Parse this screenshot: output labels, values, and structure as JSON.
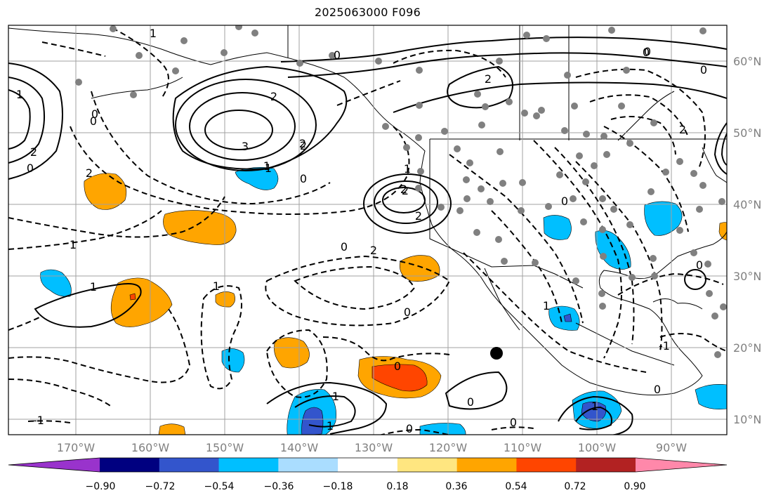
{
  "title": "2025063000 F096",
  "lon_labels": [
    "170°W",
    "160°W",
    "150°W",
    "140°W",
    "130°W",
    "120°W",
    "110°W",
    "100°W",
    "90°W"
  ],
  "lat_labels": [
    "60°N",
    "50°N",
    "40°N",
    "30°N",
    "20°N",
    "10°N"
  ],
  "colorbar": {
    "colors": [
      "#9933cc",
      "#000080",
      "#3355cc",
      "#00bfff",
      "#aaddff",
      "#ffffff",
      "#ffe680",
      "#ffa500",
      "#ff4500",
      "#b22222",
      "#ff88aa"
    ],
    "ticks": [
      "−0.90",
      "−0.72",
      "−0.54",
      "−0.36",
      "−0.18",
      "0.18",
      "0.36",
      "0.54",
      "0.72",
      "0.90"
    ]
  },
  "contour_labels": [
    "1",
    "0",
    "2",
    "3",
    "2",
    "0",
    "1",
    "0",
    "2",
    "2",
    "1",
    "1",
    "0",
    "0",
    "2",
    "2",
    "2",
    "1",
    "0",
    "1",
    "0",
    "0",
    "1",
    "1",
    "0",
    "0",
    "0",
    "0",
    "0",
    "1",
    "0",
    "1",
    "2",
    "2",
    "0",
    "0",
    "-1",
    "0",
    "-1",
    "1",
    "2",
    "2",
    "1"
  ]
}
